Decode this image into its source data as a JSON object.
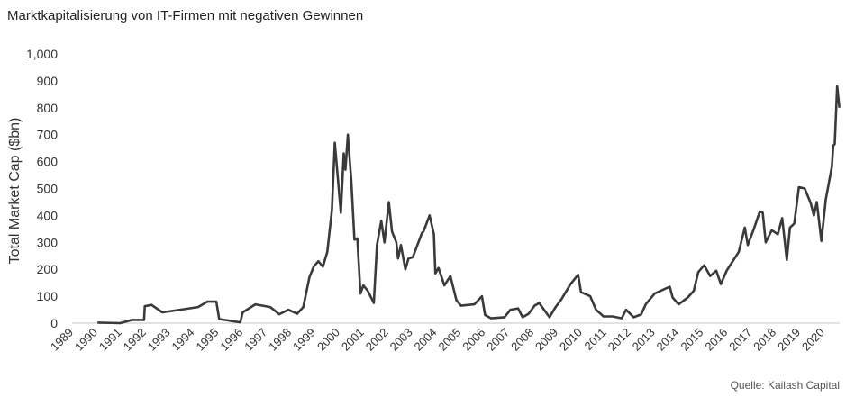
{
  "chart_data": {
    "type": "line",
    "title": "Marktkapitalisierung von IT-Firmen mit negativen Gewinnen",
    "xlabel": "",
    "ylabel": "Total Market Cap ($bn)",
    "source": "Quelle: Kailash Capital",
    "xlim": [
      1989,
      2021
    ],
    "ylim": [
      0,
      1000
    ],
    "grid": false,
    "x_ticks": [
      "1989",
      "1990",
      "1991",
      "1992",
      "1993",
      "1994",
      "1995",
      "1996",
      "1997",
      "1998",
      "1999",
      "2000",
      "2001",
      "2002",
      "2003",
      "2004",
      "2005",
      "2006",
      "2007",
      "2008",
      "2009",
      "2010",
      "2011",
      "2012",
      "2013",
      "2014",
      "2015",
      "2016",
      "2017",
      "2018",
      "2019",
      "2020"
    ],
    "y_ticks": [
      "0",
      "100",
      "200",
      "300",
      "400",
      "500",
      "600",
      "700",
      "800",
      "900",
      "1,000"
    ],
    "y_tick_values": [
      0,
      100,
      200,
      300,
      400,
      500,
      600,
      700,
      800,
      900,
      1000
    ],
    "series": [
      {
        "name": "Total Market Cap",
        "color": "#3a3a3a",
        "x": [
          1990.05,
          1990.98,
          1991.48,
          1991.97,
          1992.0,
          1992.28,
          1992.72,
          1993.46,
          1994.2,
          1994.58,
          1994.95,
          1995.07,
          1995.44,
          1995.94,
          1996.04,
          1996.56,
          1997.18,
          1997.55,
          1997.92,
          1998.29,
          1998.54,
          1998.79,
          1998.97,
          1999.16,
          1999.35,
          1999.53,
          1999.72,
          1999.84,
          2000.09,
          2000.21,
          2000.28,
          2000.38,
          2000.52,
          2000.65,
          2000.77,
          2000.9,
          2001.02,
          2001.2,
          2001.45,
          2001.58,
          2001.76,
          2001.89,
          2002.07,
          2002.2,
          2002.38,
          2002.45,
          2002.57,
          2002.75,
          2002.88,
          2003.06,
          2003.25,
          2003.44,
          2003.5,
          2003.75,
          2003.93,
          2003.99,
          2004.12,
          2004.36,
          2004.61,
          2004.86,
          2005.05,
          2005.6,
          2005.91,
          2006.04,
          2006.29,
          2006.84,
          2007.09,
          2007.4,
          2007.59,
          2007.84,
          2008.08,
          2008.27,
          2008.7,
          2008.95,
          2009.2,
          2009.57,
          2009.88,
          2010.0,
          2010.38,
          2010.62,
          2010.93,
          2011.3,
          2011.68,
          2011.86,
          2012.17,
          2012.48,
          2012.67,
          2013.04,
          2013.41,
          2013.66,
          2013.78,
          2014.03,
          2014.4,
          2014.65,
          2014.84,
          2015.08,
          2015.33,
          2015.58,
          2015.77,
          2016.01,
          2016.51,
          2016.76,
          2016.88,
          2017.13,
          2017.38,
          2017.5,
          2017.62,
          2017.87,
          2018.12,
          2018.3,
          2018.49,
          2018.62,
          2018.8,
          2018.99,
          2019.23,
          2019.48,
          2019.61,
          2019.73,
          2019.92,
          2020.1,
          2020.35,
          2020.41,
          2020.47,
          2020.57,
          2020.66
        ],
        "values": [
          2,
          0,
          12,
          12,
          63,
          68,
          40,
          50,
          60,
          80,
          80,
          15,
          10,
          3,
          40,
          70,
          60,
          33,
          50,
          35,
          60,
          170,
          210,
          230,
          210,
          265,
          420,
          670,
          410,
          630,
          570,
          700,
          530,
          310,
          315,
          110,
          140,
          120,
          75,
          290,
          380,
          300,
          450,
          340,
          300,
          240,
          290,
          200,
          240,
          245,
          290,
          335,
          340,
          400,
          330,
          185,
          205,
          140,
          175,
          85,
          65,
          70,
          100,
          30,
          18,
          22,
          50,
          55,
          22,
          35,
          65,
          75,
          22,
          60,
          90,
          145,
          180,
          115,
          100,
          50,
          25,
          25,
          18,
          50,
          22,
          32,
          70,
          110,
          125,
          135,
          95,
          70,
          95,
          120,
          190,
          215,
          175,
          195,
          145,
          195,
          265,
          355,
          290,
          350,
          415,
          410,
          300,
          345,
          330,
          390,
          235,
          355,
          370,
          505,
          500,
          445,
          400,
          450,
          305,
          460,
          580,
          660,
          665,
          880,
          800
        ]
      }
    ]
  }
}
